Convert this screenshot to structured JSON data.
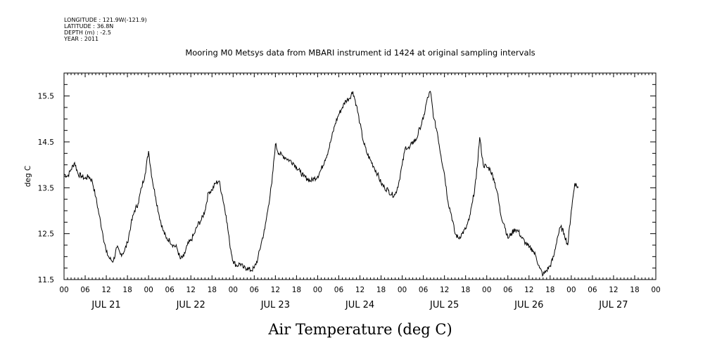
{
  "header": {
    "meta_lines": [
      "LONGITUDE : 121.9W(-121.9)",
      "LATITUDE : 36.8N",
      "DEPTH (m) : -2.5",
      "YEAR : 2011"
    ],
    "title": "Mooring M0 Metsys data from MBARI instrument id 1424 at original sampling intervals"
  },
  "chart_data": {
    "type": "line",
    "title": "Mooring M0 Metsys data from MBARI instrument id 1424 at original sampling intervals",
    "xlabel": "Air Temperature (deg C)",
    "ylabel": "deg C",
    "ylim": [
      11.5,
      16.0
    ],
    "xlim_hours": [
      0,
      168
    ],
    "y_ticks": [
      "11.5",
      "12.5",
      "13.5",
      "14.5",
      "15.5"
    ],
    "x_hour_labels": [
      "00",
      "06",
      "12",
      "18",
      "00",
      "06",
      "12",
      "18",
      "00",
      "06",
      "12",
      "18",
      "00",
      "06",
      "12",
      "18",
      "00",
      "06",
      "12",
      "18",
      "00",
      "06",
      "12",
      "18",
      "00",
      "06",
      "12",
      "18",
      "00"
    ],
    "x_date_labels": [
      "JUL 21",
      "JUL 22",
      "JUL 23",
      "JUL 24",
      "JUL 25",
      "JUL 26",
      "JUL 27"
    ],
    "grid": false,
    "legend": "none",
    "series": [
      {
        "color": "#000000",
        "points": [
          [
            0,
            13.8
          ],
          [
            1,
            13.75
          ],
          [
            2,
            13.9
          ],
          [
            3,
            14.05
          ],
          [
            4,
            13.8
          ],
          [
            5,
            13.75
          ],
          [
            6,
            13.7
          ],
          [
            7,
            13.75
          ],
          [
            8,
            13.65
          ],
          [
            9,
            13.3
          ],
          [
            10,
            12.9
          ],
          [
            11,
            12.5
          ],
          [
            12,
            12.1
          ],
          [
            13,
            11.95
          ],
          [
            14,
            11.9
          ],
          [
            15,
            12.2
          ],
          [
            16,
            12.05
          ],
          [
            17,
            12.1
          ],
          [
            18,
            12.3
          ],
          [
            19,
            12.7
          ],
          [
            20,
            13.0
          ],
          [
            21,
            13.15
          ],
          [
            22,
            13.5
          ],
          [
            23,
            13.8
          ],
          [
            24,
            14.3
          ],
          [
            25,
            13.7
          ],
          [
            26,
            13.3
          ],
          [
            27,
            12.9
          ],
          [
            28,
            12.6
          ],
          [
            29,
            12.4
          ],
          [
            30,
            12.35
          ],
          [
            31,
            12.25
          ],
          [
            32,
            12.2
          ],
          [
            33,
            11.95
          ],
          [
            34,
            12.0
          ],
          [
            35,
            12.25
          ],
          [
            36,
            12.35
          ],
          [
            37,
            12.5
          ],
          [
            38,
            12.7
          ],
          [
            39,
            12.8
          ],
          [
            40,
            13.0
          ],
          [
            41,
            13.4
          ],
          [
            42,
            13.45
          ],
          [
            43,
            13.6
          ],
          [
            44,
            13.65
          ],
          [
            45,
            13.3
          ],
          [
            46,
            12.9
          ],
          [
            47,
            12.3
          ],
          [
            48,
            11.9
          ],
          [
            49,
            11.8
          ],
          [
            50,
            11.85
          ],
          [
            51,
            11.75
          ],
          [
            52,
            11.75
          ],
          [
            53,
            11.7
          ],
          [
            54,
            11.75
          ],
          [
            55,
            11.95
          ],
          [
            56,
            12.3
          ],
          [
            57,
            12.6
          ],
          [
            58,
            13.1
          ],
          [
            59,
            13.6
          ],
          [
            60,
            14.45
          ],
          [
            61,
            14.25
          ],
          [
            62,
            14.2
          ],
          [
            63,
            14.15
          ],
          [
            64,
            14.1
          ],
          [
            65,
            14.05
          ],
          [
            66,
            13.95
          ],
          [
            67,
            13.85
          ],
          [
            68,
            13.75
          ],
          [
            69,
            13.7
          ],
          [
            70,
            13.65
          ],
          [
            71,
            13.7
          ],
          [
            72,
            13.75
          ],
          [
            73,
            13.9
          ],
          [
            74,
            14.1
          ],
          [
            75,
            14.3
          ],
          [
            76,
            14.6
          ],
          [
            77,
            14.9
          ],
          [
            78,
            15.1
          ],
          [
            79,
            15.25
          ],
          [
            80,
            15.4
          ],
          [
            81,
            15.45
          ],
          [
            82,
            15.6
          ],
          [
            83,
            15.3
          ],
          [
            84,
            14.9
          ],
          [
            85,
            14.5
          ],
          [
            86,
            14.25
          ],
          [
            87,
            14.1
          ],
          [
            88,
            13.95
          ],
          [
            89,
            13.8
          ],
          [
            90,
            13.6
          ],
          [
            91,
            13.5
          ],
          [
            92,
            13.45
          ],
          [
            93,
            13.35
          ],
          [
            94,
            13.35
          ],
          [
            95,
            13.6
          ],
          [
            96,
            14.0
          ],
          [
            97,
            14.4
          ],
          [
            98,
            14.35
          ],
          [
            99,
            14.5
          ],
          [
            100,
            14.55
          ],
          [
            101,
            14.8
          ],
          [
            102,
            15.0
          ],
          [
            103,
            15.4
          ],
          [
            104,
            15.6
          ],
          [
            105,
            15.0
          ],
          [
            106,
            14.7
          ],
          [
            107,
            14.2
          ],
          [
            108,
            13.8
          ],
          [
            109,
            13.2
          ],
          [
            110,
            12.9
          ],
          [
            111,
            12.5
          ],
          [
            112,
            12.4
          ],
          [
            113,
            12.5
          ],
          [
            114,
            12.6
          ],
          [
            115,
            12.8
          ],
          [
            116,
            13.2
          ],
          [
            117,
            13.7
          ],
          [
            118,
            14.6
          ],
          [
            119,
            14.0
          ],
          [
            120,
            13.95
          ],
          [
            121,
            13.9
          ],
          [
            122,
            13.7
          ],
          [
            123,
            13.4
          ],
          [
            124,
            12.9
          ],
          [
            125,
            12.7
          ],
          [
            126,
            12.4
          ],
          [
            127,
            12.5
          ],
          [
            128,
            12.6
          ],
          [
            129,
            12.55
          ],
          [
            130,
            12.4
          ],
          [
            131,
            12.3
          ],
          [
            132,
            12.2
          ],
          [
            133,
            12.15
          ],
          [
            134,
            12.0
          ],
          [
            135,
            11.75
          ],
          [
            136,
            11.6
          ],
          [
            137,
            11.7
          ],
          [
            138,
            11.8
          ],
          [
            139,
            12.0
          ],
          [
            140,
            12.4
          ],
          [
            141,
            12.65
          ],
          [
            142,
            12.5
          ],
          [
            143,
            12.25
          ],
          [
            144,
            13.0
          ],
          [
            145,
            13.6
          ],
          [
            146,
            13.5
          ]
        ]
      }
    ]
  }
}
